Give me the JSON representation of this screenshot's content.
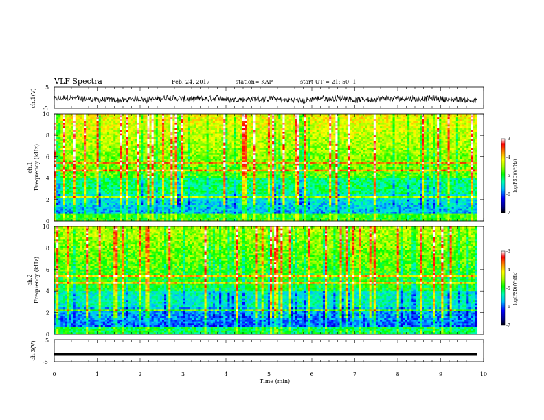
{
  "header": {
    "title": "VLF Spectra",
    "date": "Feb. 24, 2017",
    "station": "station= KAP",
    "start": "start  UT =  21: 50: 1"
  },
  "chart_data": [
    {
      "type": "line",
      "panel": "ch1-waveform",
      "ylabel": "ch.1(V)",
      "xlim": [
        0,
        10
      ],
      "ylim": [
        -5,
        5
      ],
      "yticks": [
        "5",
        "-5"
      ],
      "note_values": "noisy waveform around 0 V, amplitude about ±2 V, data ends near 9.85 min"
    },
    {
      "type": "heatmap",
      "panel": "ch1-spectrogram",
      "ylabel_top": "ch.1",
      "ylabel": "Frequency  (kHz)",
      "xlim": [
        0,
        10
      ],
      "ylim": [
        0,
        10
      ],
      "yticks": [
        "0",
        "2",
        "4",
        "6",
        "8",
        "10"
      ],
      "colorbar": {
        "label": "log(PSD)(V²/Hz)",
        "ticks": [
          "-3",
          "-4",
          "-5",
          "-6",
          "-7"
        ],
        "range": [
          -7,
          -3
        ]
      }
    },
    {
      "type": "heatmap",
      "panel": "ch2-spectrogram",
      "ylabel_top": "ch.2",
      "ylabel": "Frequency  (kHz)",
      "xlim": [
        0,
        10
      ],
      "ylim": [
        0,
        10
      ],
      "yticks": [
        "0",
        "2",
        "4",
        "6",
        "8",
        "10"
      ],
      "colorbar": {
        "label": "log(PSD)(V²/Hz)",
        "ticks": [
          "-3",
          "-4",
          "-5",
          "-6",
          "-7"
        ],
        "range": [
          -7,
          -3
        ]
      }
    },
    {
      "type": "line",
      "panel": "ch3-waveform",
      "ylabel": "ch.3(V)",
      "xlim": [
        0,
        10
      ],
      "ylim": [
        -5,
        5
      ],
      "yticks": [
        "5",
        "-5"
      ],
      "values_x": [
        0,
        9.85
      ],
      "values_y": [
        -1.7,
        -1.7
      ]
    }
  ],
  "xaxis": {
    "label": "Time  (min)",
    "ticks": [
      "0",
      "1",
      "2",
      "3",
      "4",
      "5",
      "6",
      "7",
      "8",
      "9",
      "10"
    ]
  },
  "colors": {
    "frame": "#000000",
    "colormap": [
      "#000000",
      "#00008b",
      "#0000ff",
      "#00bfff",
      "#00ffb0",
      "#00ff00",
      "#a0ff00",
      "#ffff00",
      "#ff8c00",
      "#ff0000",
      "#ffffff"
    ]
  }
}
